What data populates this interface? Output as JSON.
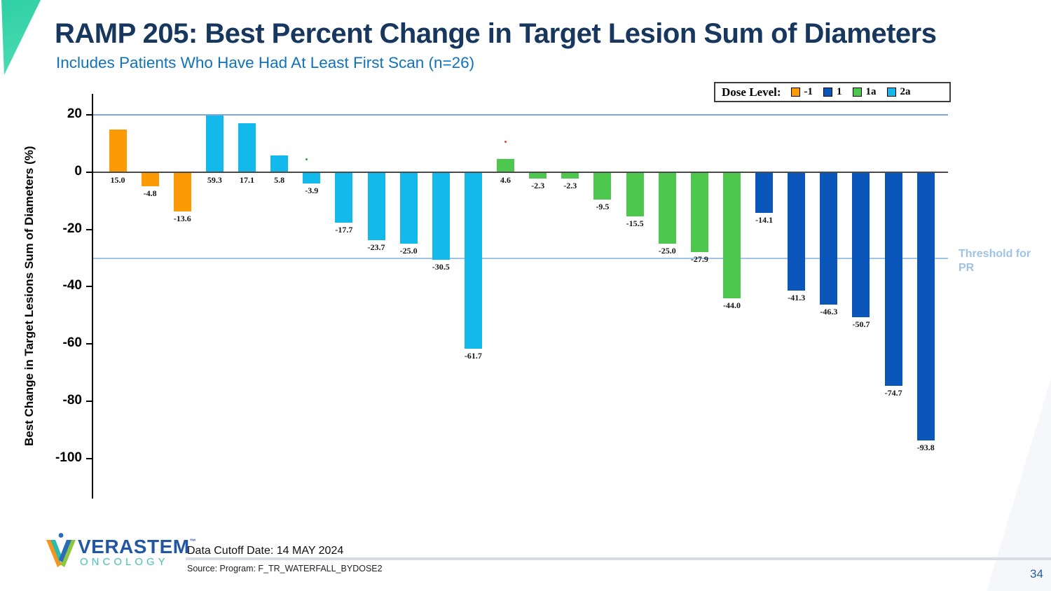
{
  "slide": {
    "title": "RAMP 205: Best Percent Change in Target Lesion Sum of Diameters",
    "subtitle": "Includes Patients Who Have Had At Least First Scan (n=26)",
    "page_number": "34"
  },
  "legend": {
    "label": "Dose Level:",
    "items": [
      {
        "label": "-1",
        "color": "#FC9A06"
      },
      {
        "label": "1",
        "color": "#0B56BB"
      },
      {
        "label": "1a",
        "color": "#4DC74D"
      },
      {
        "label": "2a",
        "color": "#14B9EC"
      }
    ]
  },
  "chart_data": {
    "type": "bar",
    "kind": "waterfall",
    "title": "",
    "xlabel": "",
    "ylabel": "Best Change in Target Lesions Sum of Diameters (%)",
    "yticks": [
      20,
      0,
      -20,
      -40,
      -60,
      -80,
      -100
    ],
    "ylim": [
      -110,
      27
    ],
    "grid": false,
    "display_clamp_max": 20,
    "zero_line_color": "#4a4a4a",
    "reference_lines": [
      {
        "y": 20,
        "color": "#7EA6DA",
        "label": ""
      },
      {
        "y": -30,
        "color": "#9DC3E6",
        "label": "Threshold for PR"
      }
    ],
    "threshold_label": {
      "line1": "Threshold for",
      "line2": "PR",
      "color": "#9DC3E6"
    },
    "bars": [
      {
        "value": 15.0,
        "dose": "-1"
      },
      {
        "value": -4.8,
        "dose": "-1"
      },
      {
        "value": -13.6,
        "dose": "-1"
      },
      {
        "value": 59.3,
        "dose": "2a"
      },
      {
        "value": 17.1,
        "dose": "2a"
      },
      {
        "value": 5.8,
        "dose": "2a"
      },
      {
        "value": -3.9,
        "dose": "2a"
      },
      {
        "value": -17.7,
        "dose": "2a"
      },
      {
        "value": -23.7,
        "dose": "2a"
      },
      {
        "value": -25.0,
        "dose": "2a"
      },
      {
        "value": -30.5,
        "dose": "2a"
      },
      {
        "value": -61.7,
        "dose": "2a"
      },
      {
        "value": 4.6,
        "dose": "1a"
      },
      {
        "value": -2.3,
        "dose": "1a"
      },
      {
        "value": -2.3,
        "dose": "1a"
      },
      {
        "value": -9.5,
        "dose": "1a"
      },
      {
        "value": -15.5,
        "dose": "1a"
      },
      {
        "value": -25.0,
        "dose": "1a"
      },
      {
        "value": -27.9,
        "dose": "1a"
      },
      {
        "value": -44.0,
        "dose": "1a"
      },
      {
        "value": -14.1,
        "dose": "1"
      },
      {
        "value": -41.3,
        "dose": "1"
      },
      {
        "value": -46.3,
        "dose": "1"
      },
      {
        "value": -50.7,
        "dose": "1"
      },
      {
        "value": -74.7,
        "dose": "1"
      },
      {
        "value": -93.8,
        "dose": "1"
      }
    ],
    "stray_dots": [
      {
        "x": 436,
        "y": 226,
        "color": "#2E9E3C"
      },
      {
        "x": 720,
        "y": 201,
        "color": "#E04038"
      }
    ]
  },
  "footer": {
    "brand_name": "VERASTEM",
    "brand_tm": "™",
    "brand_division": "ONCOLOGY",
    "data_cutoff": "Data Cutoff Date: 14 MAY 2024",
    "source": "Source: Program: F_TR_WATERFALL_BYDOSE2"
  }
}
